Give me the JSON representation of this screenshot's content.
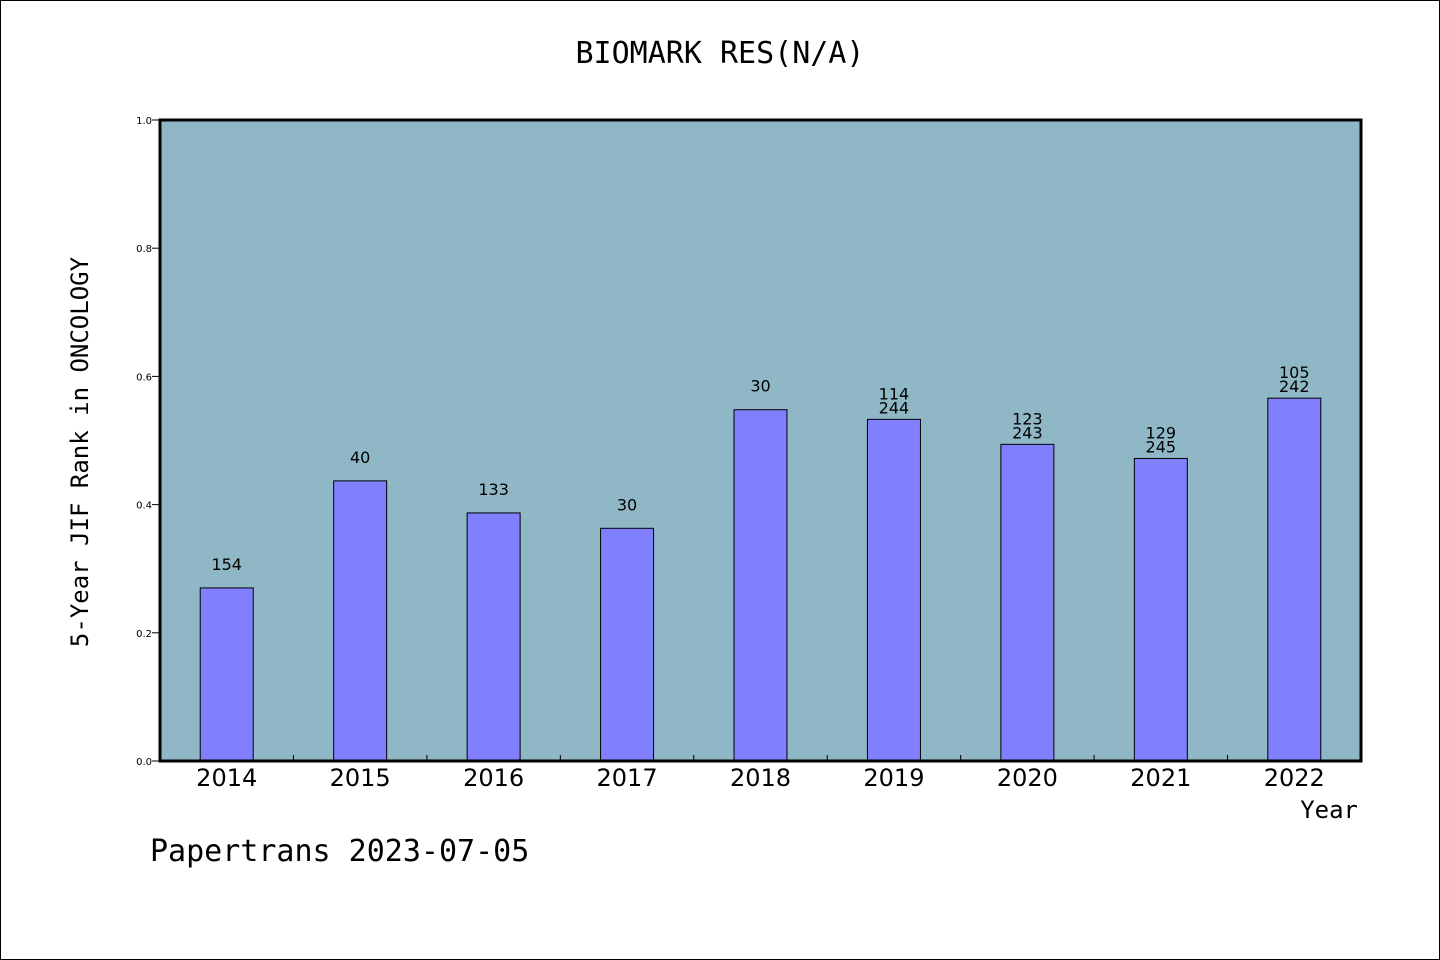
{
  "chart_data": {
    "type": "bar",
    "title": "BIOMARK RES(N/A)",
    "xlabel": "Year",
    "ylabel": "5-Year JIF Rank in ONCOLOGY",
    "ylim": [
      0,
      1.0
    ],
    "yticks": [
      "0.0",
      "0.2",
      "0.4",
      "0.6",
      "0.8",
      "1.0"
    ],
    "categories": [
      "2014",
      "2015",
      "2016",
      "2017",
      "2018",
      "2019",
      "2020",
      "2021",
      "2022"
    ],
    "values": [
      0.27,
      0.437,
      0.387,
      0.363,
      0.548,
      0.533,
      0.494,
      0.472,
      0.566
    ],
    "bar_labels": [
      [
        "154"
      ],
      [
        "40"
      ],
      [
        "133"
      ],
      [
        "30"
      ],
      [
        "30"
      ],
      [
        "114",
        "244"
      ],
      [
        "123",
        "243"
      ],
      [
        "129",
        "245"
      ],
      [
        "105",
        "242"
      ]
    ],
    "grid": false,
    "colors": {
      "plot_background": "#8fb7c5",
      "bar_fill": "#8080ff",
      "bar_stroke": "#000000"
    }
  },
  "footer": "Papertrans 2023-07-05"
}
